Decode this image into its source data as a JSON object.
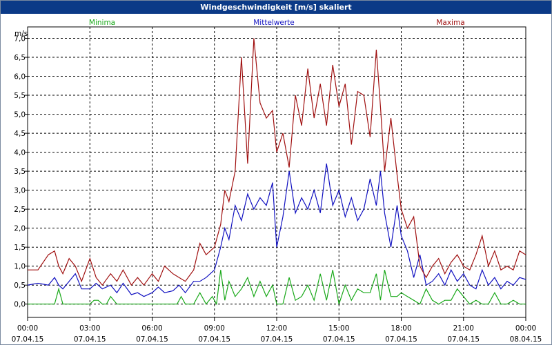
{
  "window": {
    "title": "Windgeschwindigkeit [m/s] skaliert"
  },
  "chart_data": {
    "type": "line",
    "title": "Windgeschwindigkeit [m/s] skaliert",
    "ylabel": "m/s",
    "xlabel": "",
    "ylim": [
      -0.35,
      7.3
    ],
    "xlim": [
      0,
      24
    ],
    "grid": true,
    "y_ticks": [
      "0,0",
      "0,5",
      "1,0",
      "1,5",
      "2,0",
      "2,5",
      "3,0",
      "3,5",
      "4,0",
      "4,5",
      "5,0",
      "5,5",
      "6,0",
      "6,5",
      "7,0"
    ],
    "x_ticks": [
      {
        "time": "00:00",
        "date": "07.04.15"
      },
      {
        "time": "03:00",
        "date": "07.04.15"
      },
      {
        "time": "06:00",
        "date": "07.04.15"
      },
      {
        "time": "09:00",
        "date": "07.04.15"
      },
      {
        "time": "12:00",
        "date": "07.04.15"
      },
      {
        "time": "15:00",
        "date": "07.04.15"
      },
      {
        "time": "18:00",
        "date": "07.04.15"
      },
      {
        "time": "21:00",
        "date": "07.04.15"
      },
      {
        "time": "00:00",
        "date": "08.04.15"
      }
    ],
    "series": [
      {
        "name": "Minima",
        "color": "#18a818",
        "x": [
          0,
          0.5,
          1,
          1.3,
          1.5,
          1.7,
          2,
          2.5,
          3,
          3.2,
          3.4,
          3.6,
          3.8,
          4,
          4.3,
          4.6,
          5,
          5.5,
          6,
          6.5,
          7,
          7.2,
          7.4,
          7.6,
          8,
          8.3,
          8.6,
          8.9,
          9.1,
          9.3,
          9.5,
          9.7,
          10,
          10.3,
          10.6,
          10.9,
          11.2,
          11.5,
          11.8,
          12,
          12.3,
          12.6,
          12.9,
          13.2,
          13.5,
          13.8,
          14.1,
          14.4,
          14.7,
          15,
          15.3,
          15.6,
          15.9,
          16.2,
          16.5,
          16.8,
          17,
          17.2,
          17.5,
          17.8,
          18,
          18.3,
          18.6,
          18.9,
          19.2,
          19.5,
          19.8,
          20.1,
          20.4,
          20.7,
          21,
          21.3,
          21.6,
          21.9,
          22.2,
          22.5,
          22.8,
          23.1,
          23.4,
          23.7,
          24
        ],
        "values": [
          0,
          0,
          0,
          0,
          0.4,
          0,
          0,
          0,
          0,
          0.1,
          0.1,
          0,
          0,
          0.2,
          0,
          0,
          0,
          0,
          0,
          0,
          0,
          0,
          0.2,
          0,
          0,
          0.3,
          0,
          0.2,
          0,
          0.9,
          0.1,
          0.6,
          0.2,
          0.4,
          0.7,
          0.2,
          0.6,
          0.2,
          0.5,
          0,
          0,
          0.7,
          0.1,
          0.2,
          0.5,
          0.1,
          0.8,
          0.1,
          0.9,
          0,
          0.5,
          0.1,
          0.4,
          0.3,
          0.3,
          0.8,
          0.1,
          0.9,
          0.2,
          0.2,
          0.3,
          0.2,
          0.1,
          0,
          0.4,
          0.1,
          0,
          0.1,
          0.1,
          0.4,
          0.2,
          0,
          0.1,
          0,
          0,
          0.3,
          0,
          0,
          0.1,
          0,
          0
        ]
      },
      {
        "name": "Mittelwerte",
        "color": "#1010c0",
        "x": [
          0,
          0.5,
          1,
          1.3,
          1.5,
          1.7,
          2,
          2.3,
          2.6,
          3,
          3.3,
          3.6,
          4,
          4.3,
          4.6,
          5,
          5.3,
          5.6,
          6,
          6.3,
          6.6,
          7,
          7.3,
          7.6,
          8,
          8.3,
          8.6,
          9,
          9.3,
          9.5,
          9.7,
          10,
          10.3,
          10.6,
          10.9,
          11.2,
          11.5,
          11.8,
          12,
          12.3,
          12.6,
          12.9,
          13.2,
          13.5,
          13.8,
          14.1,
          14.4,
          14.7,
          15,
          15.3,
          15.6,
          15.9,
          16.2,
          16.5,
          16.8,
          17,
          17.2,
          17.5,
          17.8,
          18,
          18.3,
          18.6,
          18.9,
          19.2,
          19.5,
          19.8,
          20.1,
          20.4,
          20.7,
          21,
          21.3,
          21.6,
          21.9,
          22.2,
          22.5,
          22.8,
          23.1,
          23.4,
          23.7,
          24
        ],
        "values": [
          0.5,
          0.55,
          0.5,
          0.7,
          0.5,
          0.4,
          0.6,
          0.8,
          0.4,
          0.4,
          0.55,
          0.4,
          0.5,
          0.3,
          0.55,
          0.25,
          0.3,
          0.2,
          0.3,
          0.45,
          0.3,
          0.35,
          0.5,
          0.3,
          0.6,
          0.6,
          0.7,
          0.9,
          1.5,
          2.0,
          1.7,
          2.6,
          2.2,
          2.9,
          2.5,
          2.8,
          2.6,
          3.2,
          1.5,
          2.3,
          3.5,
          2.4,
          2.8,
          2.5,
          3.0,
          2.4,
          3.7,
          2.6,
          3.0,
          2.3,
          2.8,
          2.2,
          2.5,
          3.3,
          2.6,
          3.5,
          2.4,
          1.5,
          2.6,
          1.8,
          1.4,
          0.7,
          1.3,
          0.5,
          0.6,
          0.8,
          0.5,
          0.9,
          0.6,
          0.8,
          0.5,
          0.4,
          0.9,
          0.5,
          0.7,
          0.4,
          0.6,
          0.5,
          0.7,
          0.65
        ]
      },
      {
        "name": "Maxima",
        "color": "#a01010",
        "x": [
          0,
          0.5,
          1,
          1.3,
          1.5,
          1.7,
          2,
          2.3,
          2.6,
          3,
          3.3,
          3.6,
          4,
          4.3,
          4.6,
          5,
          5.3,
          5.6,
          6,
          6.3,
          6.6,
          7,
          7.3,
          7.6,
          8,
          8.3,
          8.6,
          9,
          9.3,
          9.5,
          9.7,
          10,
          10.3,
          10.6,
          10.9,
          11.2,
          11.5,
          11.8,
          12,
          12.3,
          12.6,
          12.9,
          13.2,
          13.5,
          13.8,
          14.1,
          14.4,
          14.7,
          15,
          15.3,
          15.6,
          15.9,
          16.2,
          16.5,
          16.8,
          17,
          17.2,
          17.5,
          17.8,
          18,
          18.3,
          18.6,
          18.9,
          19.2,
          19.5,
          19.8,
          20.1,
          20.4,
          20.7,
          21,
          21.3,
          21.6,
          21.9,
          22.2,
          22.5,
          22.8,
          23.1,
          23.4,
          23.7,
          24
        ],
        "values": [
          0.9,
          0.9,
          1.3,
          1.4,
          1.0,
          0.8,
          1.2,
          1.0,
          0.6,
          1.2,
          0.7,
          0.5,
          0.8,
          0.6,
          0.9,
          0.5,
          0.7,
          0.5,
          0.8,
          0.6,
          1.0,
          0.8,
          0.7,
          0.6,
          0.9,
          1.6,
          1.3,
          1.5,
          2.1,
          3.0,
          2.7,
          3.5,
          6.5,
          3.7,
          7.0,
          5.3,
          4.9,
          5.1,
          4.0,
          4.5,
          3.6,
          5.5,
          4.7,
          6.2,
          4.9,
          5.8,
          4.7,
          6.3,
          5.2,
          5.8,
          4.2,
          5.6,
          5.5,
          4.4,
          6.7,
          5.2,
          3.5,
          4.9,
          3.4,
          2.5,
          2.0,
          2.3,
          1.0,
          0.7,
          1.0,
          1.2,
          0.8,
          1.1,
          1.3,
          1.0,
          0.9,
          1.3,
          1.8,
          1.0,
          1.4,
          0.9,
          1.0,
          0.9,
          1.4,
          1.3
        ]
      }
    ]
  }
}
